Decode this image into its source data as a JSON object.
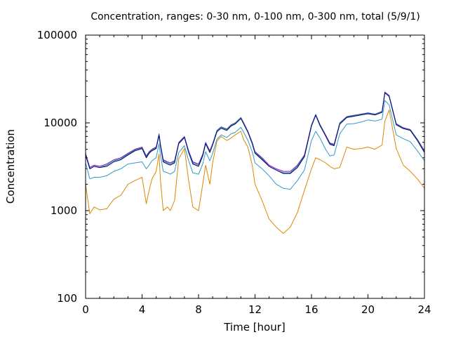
{
  "chart_data": {
    "type": "line",
    "title": "Concentration, ranges: 0-30 nm, 0-100 nm, 0-300 nm, total (5/9/1)",
    "xlabel": "Time [hour]",
    "ylabel": "Concentration",
    "xlim": [
      0,
      24
    ],
    "ylim": [
      100,
      100000
    ],
    "yscale": "log",
    "grid": false,
    "xticks": [
      0,
      4,
      8,
      12,
      16,
      20,
      24
    ],
    "xtick_labels": [
      "0",
      "4",
      "8",
      "12",
      "16",
      "20",
      "24"
    ],
    "yticks": [
      100,
      1000,
      10000,
      100000
    ],
    "ytick_labels": [
      "100",
      "1000",
      "10000",
      "100000"
    ],
    "x": [
      0,
      0.3,
      0.6,
      1,
      1.5,
      2,
      2.5,
      3,
      3.5,
      4,
      4.3,
      4.5,
      4.7,
      5,
      5.2,
      5.3,
      5.5,
      5.8,
      6,
      6.3,
      6.6,
      7,
      7.3,
      7.6,
      8,
      8.3,
      8.5,
      8.8,
      9,
      9.3,
      9.6,
      10,
      10.3,
      10.6,
      11,
      11.2,
      11.5,
      11.8,
      12,
      12.5,
      13,
      13.5,
      14,
      14.5,
      15,
      15.5,
      16,
      16.3,
      16.6,
      17,
      17.3,
      17.6,
      18,
      18.5,
      19,
      19.5,
      20,
      20.5,
      21,
      21.2,
      21.5,
      22,
      22.5,
      23,
      23.5,
      24
    ],
    "series": [
      {
        "color": "#dd8800",
        "values": [
          2000,
          920,
          1100,
          1020,
          1050,
          1350,
          1500,
          2000,
          2200,
          2400,
          1200,
          1700,
          2300,
          2800,
          4400,
          2200,
          1000,
          1100,
          1000,
          1300,
          3900,
          5100,
          2200,
          1100,
          1000,
          2000,
          3300,
          2000,
          3500,
          6200,
          7000,
          6300,
          6700,
          7300,
          8000,
          6400,
          5300,
          3300,
          2000,
          1300,
          800,
          650,
          550,
          650,
          950,
          1700,
          3000,
          4000,
          3800,
          3500,
          3200,
          3000,
          3100,
          5300,
          5000,
          5100,
          5300,
          5000,
          5600,
          10500,
          14000,
          5100,
          3300,
          2800,
          2300,
          1800
        ]
      },
      {
        "color": "#3399cc",
        "values": [
          3500,
          2300,
          2400,
          2400,
          2500,
          2800,
          3000,
          3400,
          3500,
          3600,
          3000,
          3300,
          3700,
          4000,
          5800,
          4300,
          2800,
          2700,
          2600,
          2800,
          4600,
          5500,
          3700,
          2700,
          2600,
          3400,
          4700,
          3700,
          4500,
          6500,
          7300,
          6800,
          7500,
          7800,
          8900,
          7800,
          6300,
          4700,
          3500,
          3000,
          2500,
          2000,
          1800,
          1750,
          2200,
          2900,
          6300,
          8000,
          6700,
          5000,
          4200,
          4300,
          7500,
          9700,
          9800,
          10200,
          10800,
          10500,
          11000,
          18000,
          16000,
          7300,
          6600,
          6100,
          4800,
          3700
        ]
      },
      {
        "color": "#9400d3",
        "values": [
          4500,
          3100,
          3300,
          3200,
          3400,
          3800,
          4000,
          4500,
          5000,
          5300,
          4200,
          4700,
          5000,
          5300,
          7500,
          5700,
          3800,
          3600,
          3500,
          3700,
          6000,
          7000,
          4800,
          3600,
          3400,
          4400,
          6000,
          4800,
          5800,
          8200,
          9000,
          8500,
          9500,
          10000,
          11500,
          10000,
          8000,
          6000,
          4700,
          4000,
          3300,
          3000,
          2800,
          2800,
          3300,
          4300,
          9500,
          12500,
          9600,
          7300,
          5900,
          5700,
          10000,
          11800,
          12200,
          12600,
          13000,
          12600,
          13500,
          22500,
          20500,
          9800,
          8800,
          8400,
          6500,
          4800
        ]
      },
      {
        "color": "#009e73",
        "values": [
          4400,
          3000,
          3200,
          3100,
          3300,
          3700,
          3900,
          4400,
          4900,
          5200,
          4100,
          4600,
          4900,
          5200,
          7400,
          5600,
          3700,
          3500,
          3400,
          3600,
          5900,
          6900,
          4700,
          3500,
          3300,
          4300,
          5900,
          4700,
          5700,
          8100,
          8900,
          8400,
          9400,
          9900,
          11400,
          9900,
          7900,
          5900,
          4600,
          3900,
          3200,
          2900,
          2700,
          2700,
          3200,
          4200,
          9400,
          12400,
          9500,
          7200,
          5800,
          5600,
          9900,
          11700,
          12100,
          12500,
          12900,
          12500,
          13400,
          22300,
          20300,
          9700,
          8700,
          8300,
          6400,
          4700
        ]
      },
      {
        "color": "#000080",
        "values": [
          4300,
          3000,
          3200,
          3100,
          3200,
          3600,
          3800,
          4300,
          4800,
          5100,
          4000,
          4500,
          4800,
          5100,
          7200,
          5500,
          3600,
          3400,
          3300,
          3500,
          5800,
          6800,
          4600,
          3400,
          3200,
          4200,
          5800,
          4600,
          5600,
          7900,
          8700,
          8200,
          9200,
          9700,
          11200,
          9700,
          7800,
          5800,
          4500,
          3800,
          3200,
          2900,
          2650,
          2650,
          3100,
          4100,
          9200,
          12200,
          9300,
          7100,
          5700,
          5500,
          9700,
          11500,
          11900,
          12300,
          12700,
          12300,
          13200,
          22000,
          20000,
          9500,
          8600,
          8200,
          6300,
          4600
        ]
      }
    ]
  }
}
